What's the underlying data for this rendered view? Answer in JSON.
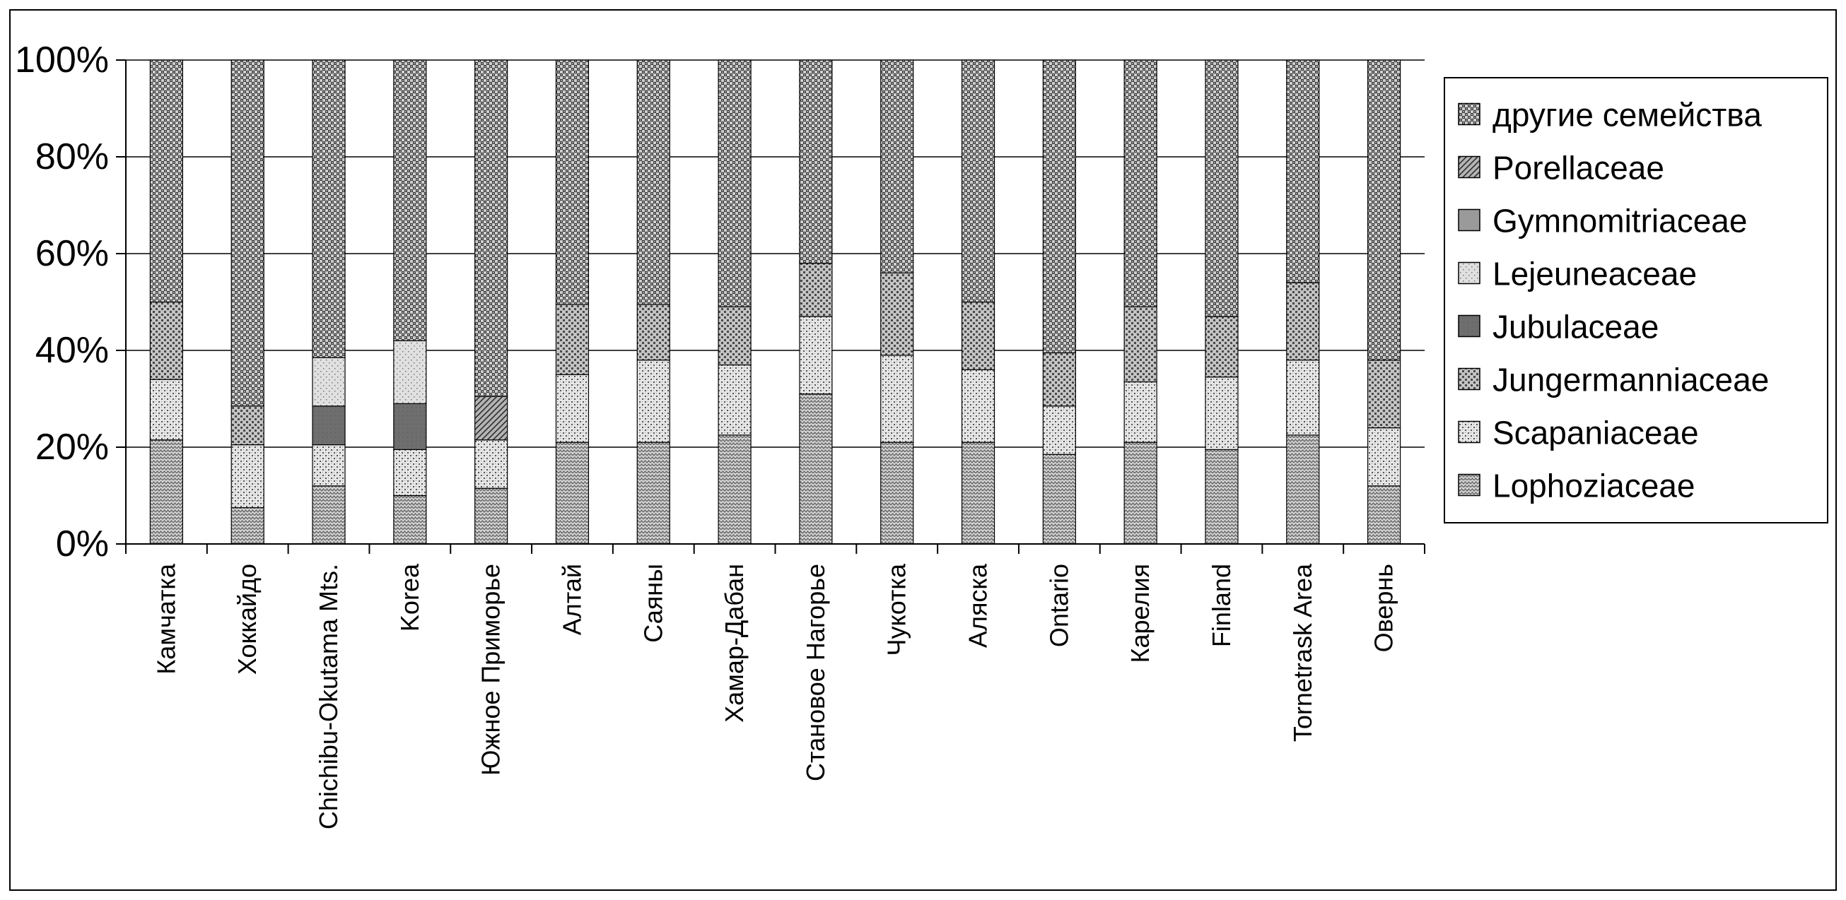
{
  "chart_data": {
    "type": "bar",
    "stacked": "percent",
    "ylim": [
      0,
      100
    ],
    "y_ticks": [
      "0%",
      "20%",
      "40%",
      "60%",
      "80%",
      "100%"
    ],
    "legend_position": "right",
    "grid": true,
    "categories": [
      "Камчатка",
      "Хоккайдо",
      "Chichibu-Okutama Mts.",
      "Korea",
      "Южное Приморье",
      "Алтай",
      "Саяны",
      "Хамар-Дабан",
      "Становое Нагорье",
      "Чукотка",
      "Аляска",
      "Ontario",
      "Карелия",
      "Finland",
      "Tornetrask Area",
      "Овернь"
    ],
    "series": [
      {
        "name": "Lophoziaceae",
        "pattern": "pat-lopho",
        "values": [
          21.5,
          7.5,
          12,
          10,
          11.5,
          21,
          21,
          22.5,
          31,
          21,
          21,
          18.5,
          21,
          19.5,
          22.5,
          12
        ]
      },
      {
        "name": "Scapaniaceae",
        "pattern": "pat-scap",
        "values": [
          12.5,
          13,
          8.5,
          9.5,
          10,
          14,
          17,
          14.5,
          16,
          18,
          15,
          10,
          12.5,
          15,
          15.5,
          12
        ]
      },
      {
        "name": "Jungermanniaceae",
        "pattern": "pat-junger",
        "values": [
          16,
          8,
          0,
          0,
          0,
          14.5,
          11.5,
          12,
          11,
          17,
          14,
          11,
          15.5,
          12.5,
          16,
          14
        ]
      },
      {
        "name": "Jubulaceae",
        "pattern": "pat-jubul",
        "values": [
          0,
          0,
          8,
          9.5,
          0,
          0,
          0,
          0,
          0,
          0,
          0,
          0,
          0,
          0,
          0,
          0
        ]
      },
      {
        "name": "Lejeuneaceae",
        "pattern": "pat-lejeu",
        "values": [
          0,
          0,
          10,
          13,
          0,
          0,
          0,
          0,
          0,
          0,
          0,
          0,
          0,
          0,
          0,
          0
        ]
      },
      {
        "name": "Gymnomitriaceae",
        "pattern": "pat-gymno",
        "values": [
          0,
          0,
          0,
          0,
          0,
          0,
          0,
          0,
          0,
          0,
          0,
          0,
          0,
          0,
          0,
          0
        ]
      },
      {
        "name": "Porellaceae",
        "pattern": "pat-porel",
        "values": [
          0,
          0,
          0,
          0,
          9,
          0,
          0,
          0,
          0,
          0,
          0,
          0,
          0,
          0,
          0,
          0
        ]
      },
      {
        "name": "другие семейства",
        "pattern": "pat-other",
        "values": [
          50,
          71.5,
          61.5,
          58,
          69.5,
          50.5,
          50.5,
          51,
          42,
          44,
          50,
          60.5,
          51,
          53,
          46,
          62
        ]
      }
    ]
  }
}
